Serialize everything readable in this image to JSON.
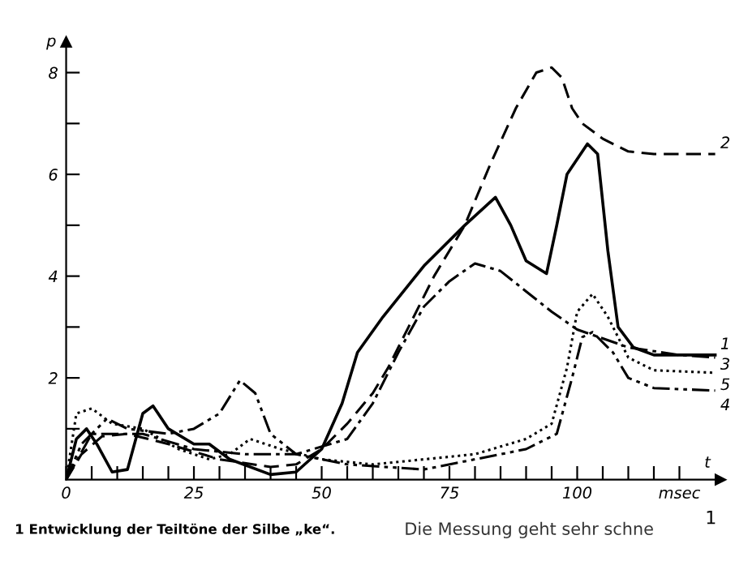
{
  "chart_data": {
    "type": "line",
    "ylabel": "p",
    "xlabel": "t",
    "x": [
      0,
      2,
      4,
      6,
      9,
      12,
      15,
      17,
      20,
      25,
      28,
      32,
      40,
      45,
      50,
      54,
      57,
      62,
      70,
      78,
      84,
      87,
      90,
      94,
      96,
      98,
      102,
      104,
      106,
      108,
      111,
      115,
      127
    ],
    "series": [
      {
        "name": "1",
        "color": "#000000",
        "line_style": "solid",
        "values": [
          0,
          0.8,
          1.0,
          0.7,
          0.15,
          0.2,
          1.3,
          1.45,
          1.0,
          0.7,
          0.7,
          0.4,
          0.1,
          0.15,
          0.6,
          1.5,
          2.5,
          3.2,
          4.2,
          5.0,
          5.55,
          5.0,
          4.3,
          4.05,
          5.0,
          6.0,
          6.6,
          6.4,
          4.5,
          3.0,
          2.6,
          2.45,
          2.45
        ]
      },
      {
        "name": "2",
        "color": "#000000",
        "line_style": "dashed",
        "x": [
          0,
          3,
          7,
          12,
          20,
          30,
          40,
          45,
          50,
          55,
          60,
          63,
          67,
          72,
          78,
          83,
          88,
          92,
          95,
          97,
          99,
          101,
          105,
          110,
          115,
          127
        ],
        "values": [
          0,
          0.5,
          0.85,
          0.9,
          0.7,
          0.4,
          0.25,
          0.3,
          0.6,
          1.1,
          1.7,
          2.2,
          3.0,
          4.0,
          5.0,
          6.2,
          7.3,
          8.0,
          8.1,
          7.9,
          7.3,
          7.0,
          6.7,
          6.45,
          6.4,
          6.4
        ]
      },
      {
        "name": "3",
        "color": "#000000",
        "line_style": "dashdot",
        "x": [
          0,
          5,
          15,
          25,
          35,
          45,
          55,
          60,
          65,
          70,
          75,
          80,
          85,
          90,
          95,
          100,
          110,
          120,
          127
        ],
        "values": [
          0,
          0.9,
          0.9,
          0.6,
          0.5,
          0.5,
          0.8,
          1.5,
          2.5,
          3.4,
          3.9,
          4.25,
          4.1,
          3.7,
          3.3,
          2.95,
          2.6,
          2.45,
          2.4
        ]
      },
      {
        "name": "4",
        "color": "#000000",
        "line_style": "dashdotdot",
        "x": [
          0,
          3,
          8,
          12,
          20,
          25,
          30,
          34,
          37,
          40,
          45,
          55,
          70,
          80,
          90,
          96,
          99,
          101,
          103,
          107,
          110,
          115,
          127
        ],
        "values": [
          0,
          0.7,
          1.2,
          1.0,
          0.9,
          1.0,
          1.3,
          1.95,
          1.7,
          0.9,
          0.5,
          0.3,
          0.2,
          0.4,
          0.6,
          0.9,
          2.0,
          2.8,
          2.9,
          2.5,
          2.0,
          1.8,
          1.75
        ]
      },
      {
        "name": "5",
        "color": "#000000",
        "line_style": "dotted",
        "x": [
          0,
          2,
          5,
          9,
          15,
          22,
          28,
          32,
          36,
          42,
          50,
          60,
          70,
          80,
          90,
          95,
          98,
          100,
          103,
          106,
          110,
          115,
          127
        ],
        "values": [
          0,
          1.3,
          1.4,
          1.1,
          1.0,
          0.6,
          0.4,
          0.5,
          0.8,
          0.6,
          0.4,
          0.3,
          0.4,
          0.5,
          0.8,
          1.1,
          2.2,
          3.3,
          3.65,
          3.2,
          2.4,
          2.15,
          2.1
        ]
      }
    ],
    "xlim": [
      0,
      128
    ],
    "ylim": [
      0,
      8.6
    ],
    "xticks": [
      0,
      {
        "value": 5,
        "label": null
      },
      {
        "value": 10,
        "label": null
      },
      {
        "value": 15,
        "label": null
      },
      {
        "value": 20,
        "label": null
      },
      25,
      {
        "value": 30,
        "label": null
      },
      {
        "value": 35,
        "label": null
      },
      {
        "value": 40,
        "label": null
      },
      {
        "value": 45,
        "label": null
      },
      50,
      {
        "value": 55,
        "label": null
      },
      {
        "value": 60,
        "label": null
      },
      {
        "value": 65,
        "label": null
      },
      {
        "value": 70,
        "label": null
      },
      75,
      {
        "value": 80,
        "label": null
      },
      {
        "value": 85,
        "label": null
      },
      {
        "value": 90,
        "label": null
      },
      {
        "value": 95,
        "label": null
      },
      100,
      {
        "value": 105,
        "label": null
      },
      {
        "value": 110,
        "label": null
      },
      {
        "value": 115,
        "label": null
      },
      {
        "value": 120,
        "label": "msec"
      }
    ],
    "yticks": [
      {
        "value": 1,
        "label": null
      },
      2,
      {
        "value": 3,
        "label": null
      },
      4,
      {
        "value": 5,
        "label": null
      },
      6,
      {
        "value": 7,
        "label": null
      },
      8
    ],
    "grid": false,
    "legend": false,
    "marker": "none",
    "annotations": [
      "1 Entwicklung der Teiltöne der Silbe „ke“.",
      "Die Messung geht sehr schne",
      "1"
    ]
  }
}
